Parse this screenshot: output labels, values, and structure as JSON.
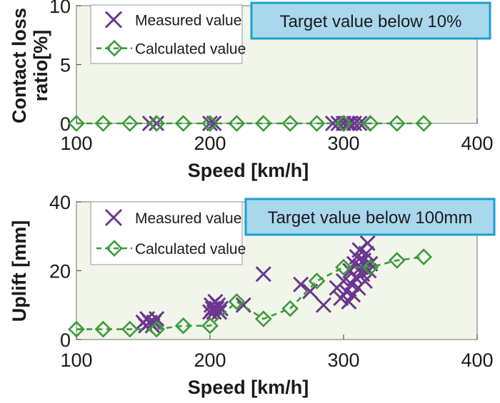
{
  "colors": {
    "plot_bg": "#f2f6ea",
    "measured": "#6b3590",
    "calculated": "#3a9b3a",
    "target_box_fill": "#a9d8ec",
    "target_box_border": "#1aa0d0"
  },
  "chart_data": [
    {
      "type": "scatter",
      "xlabel": "Speed [km/h]",
      "ylabel": "Contact loss ratio[%]",
      "ylabel_lines": [
        "Contact loss",
        "ratio[%]"
      ],
      "xlim": [
        100,
        400
      ],
      "ylim": [
        0,
        10
      ],
      "xticks": [
        100,
        200,
        300,
        400
      ],
      "yticks": [
        0,
        5,
        10
      ],
      "grid": false,
      "legend": "top-left",
      "annotation": "Target value below 10%",
      "series": [
        {
          "name": "Measured value",
          "marker": "x",
          "points": [
            [
              155,
              0
            ],
            [
              160,
              0
            ],
            [
              200,
              0
            ],
            [
              203,
              0
            ],
            [
              292,
              0
            ],
            [
              296,
              0
            ],
            [
              300,
              0
            ],
            [
              303,
              0
            ],
            [
              305,
              0
            ],
            [
              308,
              0
            ],
            [
              312,
              0
            ],
            [
              315,
              0
            ]
          ]
        },
        {
          "name": "Calculated value",
          "marker": "diamond",
          "line": "dashed",
          "points": [
            [
              100,
              0
            ],
            [
              120,
              0
            ],
            [
              140,
              0
            ],
            [
              160,
              0
            ],
            [
              180,
              0
            ],
            [
              200,
              0
            ],
            [
              220,
              0
            ],
            [
              240,
              0
            ],
            [
              260,
              0
            ],
            [
              280,
              0
            ],
            [
              300,
              0
            ],
            [
              320,
              0
            ],
            [
              340,
              0
            ],
            [
              360,
              0
            ]
          ]
        }
      ]
    },
    {
      "type": "scatter",
      "xlabel": "Speed [km/h]",
      "ylabel": "Uplift [mm]",
      "ylabel_lines": [
        "Uplift [mm]"
      ],
      "xlim": [
        100,
        400
      ],
      "ylim": [
        0,
        40
      ],
      "xticks": [
        100,
        200,
        300,
        400
      ],
      "yticks": [
        0,
        20,
        40
      ],
      "grid": false,
      "legend": "top-left",
      "annotation": "Target value below 100mm",
      "series": [
        {
          "name": "Measured value",
          "marker": "x",
          "points": [
            [
              150,
              5
            ],
            [
              152,
              4
            ],
            [
              153,
              6
            ],
            [
              155,
              5
            ],
            [
              157,
              4
            ],
            [
              158,
              5
            ],
            [
              160,
              6
            ],
            [
              200,
              8
            ],
            [
              201,
              10
            ],
            [
              202,
              9
            ],
            [
              203,
              8
            ],
            [
              204,
              11
            ],
            [
              205,
              9
            ],
            [
              206,
              10
            ],
            [
              207,
              8
            ],
            [
              208,
              9
            ],
            [
              225,
              10
            ],
            [
              240,
              19
            ],
            [
              268,
              16
            ],
            [
              275,
              14
            ],
            [
              285,
              10
            ],
            [
              295,
              15
            ],
            [
              298,
              12
            ],
            [
              300,
              17
            ],
            [
              302,
              14
            ],
            [
              304,
              11
            ],
            [
              305,
              20
            ],
            [
              306,
              16
            ],
            [
              307,
              13
            ],
            [
              308,
              22
            ],
            [
              309,
              18
            ],
            [
              310,
              24
            ],
            [
              311,
              15
            ],
            [
              312,
              26
            ],
            [
              313,
              21
            ],
            [
              314,
              19
            ],
            [
              315,
              23
            ],
            [
              316,
              17
            ],
            [
              317,
              25
            ],
            [
              318,
              28
            ],
            [
              319,
              20
            ],
            [
              320,
              22
            ]
          ]
        },
        {
          "name": "Calculated value",
          "marker": "diamond",
          "line": "dashed",
          "points": [
            [
              100,
              3
            ],
            [
              120,
              3
            ],
            [
              140,
              3
            ],
            [
              160,
              3
            ],
            [
              180,
              4
            ],
            [
              200,
              4
            ],
            [
              220,
              11
            ],
            [
              240,
              6
            ],
            [
              260,
              9
            ],
            [
              280,
              17
            ],
            [
              300,
              21
            ],
            [
              320,
              21
            ],
            [
              340,
              23
            ],
            [
              360,
              24
            ]
          ]
        }
      ]
    }
  ]
}
